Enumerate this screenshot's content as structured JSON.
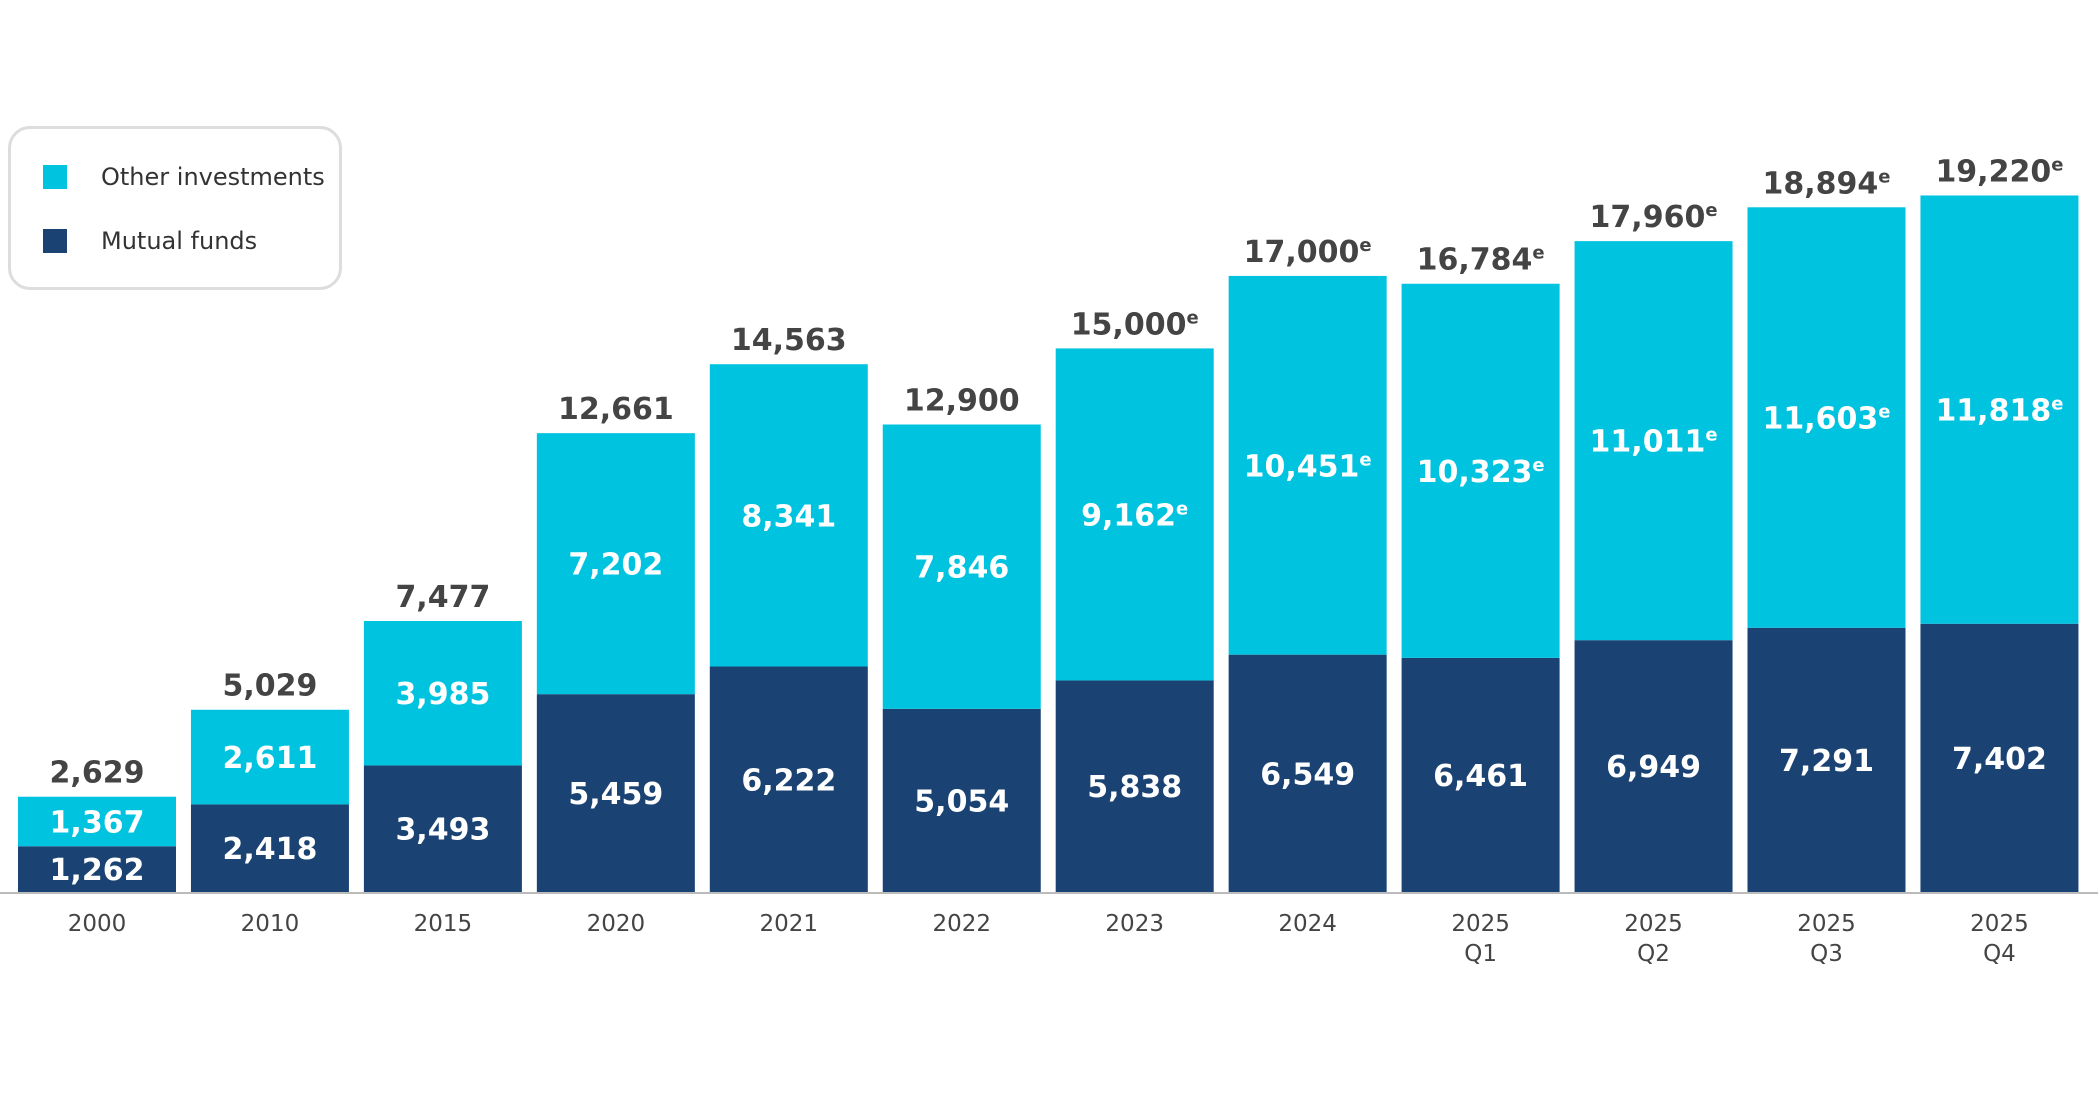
{
  "colors": {
    "other_investments": "#00c3e0",
    "mutual_funds": "#1a4373",
    "axis": "#bbbbbb",
    "total_text": "#444444",
    "segment_text": "#ffffff"
  },
  "legend": {
    "placement": "top-left",
    "items": [
      {
        "key": "other_investments",
        "label": "Other investments"
      },
      {
        "key": "mutual_funds",
        "label": "Mutual funds"
      }
    ]
  },
  "chart_data": {
    "type": "bar",
    "stacked": true,
    "title": "",
    "xlabel": "",
    "ylabel": "",
    "ylim": [
      0,
      19220
    ],
    "grid": false,
    "legend_placement": "top-left",
    "estimate_marker": "e",
    "categories": [
      [
        "2000"
      ],
      [
        "2010"
      ],
      [
        "2015"
      ],
      [
        "2020"
      ],
      [
        "2021"
      ],
      [
        "2022"
      ],
      [
        "2023"
      ],
      [
        "2024"
      ],
      [
        "2025",
        "Q1"
      ],
      [
        "2025",
        "Q2"
      ],
      [
        "2025",
        "Q3"
      ],
      [
        "2025",
        "Q4"
      ]
    ],
    "series": [
      {
        "name": "Mutual funds",
        "color": "#1a4373",
        "values": [
          1262,
          2418,
          3493,
          5459,
          6222,
          5054,
          5838,
          6549,
          6461,
          6949,
          7291,
          7402
        ],
        "labels": [
          "1,262",
          "2,418",
          "3,493",
          "5,459",
          "6,222",
          "5,054",
          "5,838",
          "6,549",
          "6,461",
          "6,949",
          "7,291",
          "7,402"
        ],
        "estimated": [
          false,
          false,
          false,
          false,
          false,
          false,
          false,
          false,
          false,
          false,
          false,
          false
        ]
      },
      {
        "name": "Other investments",
        "color": "#00c3e0",
        "values": [
          1367,
          2611,
          3985,
          7202,
          8341,
          7846,
          9162,
          10451,
          10323,
          11011,
          11603,
          11818
        ],
        "labels": [
          "1,367",
          "2,611",
          "3,985",
          "7,202",
          "8,341",
          "7,846",
          "9,162",
          "10,451",
          "10,323",
          "11,011",
          "11,603",
          "11,818"
        ],
        "estimated": [
          false,
          false,
          false,
          false,
          false,
          false,
          true,
          true,
          true,
          true,
          true,
          true
        ]
      }
    ],
    "totals": {
      "values": [
        2629,
        5029,
        7477,
        12661,
        14563,
        12900,
        15000,
        17000,
        16784,
        17960,
        18894,
        19220
      ],
      "labels": [
        "2,629",
        "5,029",
        "7,477",
        "12,661",
        "14,563",
        "12,900",
        "15,000",
        "17,000",
        "16,784",
        "17,960",
        "18,894",
        "19,220"
      ],
      "estimated": [
        false,
        false,
        false,
        false,
        false,
        false,
        true,
        true,
        true,
        true,
        true,
        true
      ]
    }
  }
}
